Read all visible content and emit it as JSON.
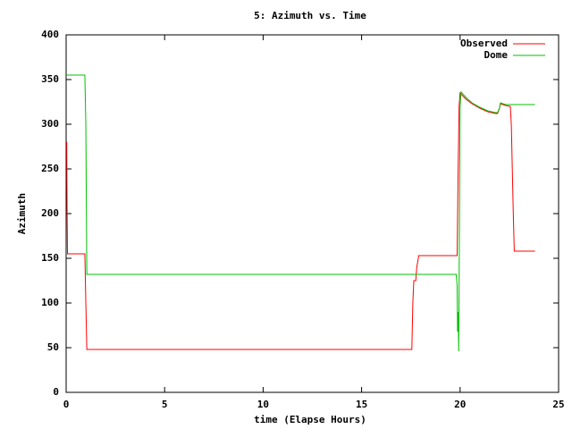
{
  "chart_data": {
    "type": "line",
    "title": "5: Azimuth vs. Time",
    "xlabel": "time (Elapse Hours)",
    "ylabel": "Azimuth",
    "xlim": [
      0,
      25
    ],
    "xticks": [
      0,
      5,
      10,
      15,
      20,
      25
    ],
    "ylim": [
      0,
      400
    ],
    "yticks": [
      0,
      50,
      100,
      150,
      200,
      250,
      300,
      350,
      400
    ],
    "grid": false,
    "legend": "top-right",
    "series": [
      {
        "name": "Observed",
        "color": "#ff0000",
        "x": [
          0,
          0.03,
          0.05,
          0.07,
          0.95,
          1.0,
          1.05,
          17.55,
          17.6,
          17.65,
          17.75,
          17.8,
          17.9,
          19.85,
          19.9,
          19.95,
          20.0,
          20.3,
          20.6,
          21.0,
          21.4,
          21.8,
          21.9,
          22.0,
          22.05,
          22.3,
          22.55,
          22.6,
          22.7,
          22.75,
          23.8
        ],
        "values": [
          280,
          280,
          200,
          155,
          155,
          100,
          48,
          48,
          100,
          125,
          125,
          140,
          153,
          153,
          250,
          320,
          335,
          328,
          323,
          318,
          314,
          312,
          312,
          318,
          323,
          321,
          320,
          300,
          200,
          158,
          158
        ]
      },
      {
        "name": "Dome",
        "color": "#00c000",
        "x": [
          0,
          0.95,
          1.0,
          1.05,
          19.8,
          19.85,
          19.87,
          19.9,
          19.93,
          19.97,
          20.0,
          20.05,
          20.3,
          20.6,
          21.0,
          21.4,
          21.8,
          21.9,
          22.0,
          22.05,
          22.3,
          22.5,
          23.8
        ],
        "values": [
          355,
          355,
          300,
          132,
          132,
          120,
          68,
          90,
          46,
          200,
          320,
          336,
          330,
          324,
          319,
          315,
          313,
          313,
          318,
          324,
          322,
          322,
          322
        ]
      }
    ]
  }
}
